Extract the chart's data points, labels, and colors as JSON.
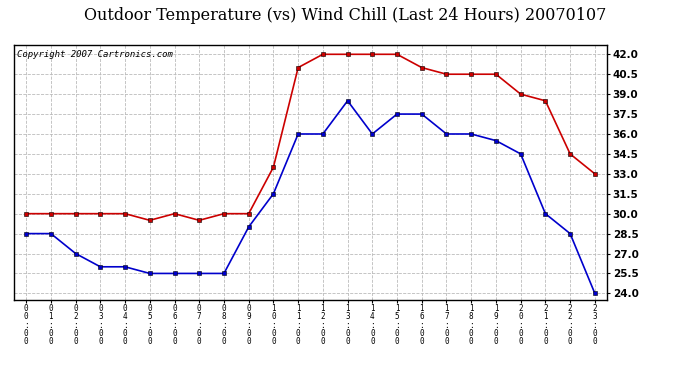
{
  "title": "Outdoor Temperature (vs) Wind Chill (Last 24 Hours) 20070107",
  "copyright": "Copyright 2007 Cartronics.com",
  "hours": [
    "00:00",
    "01:00",
    "02:00",
    "03:00",
    "04:00",
    "05:00",
    "06:00",
    "07:00",
    "08:00",
    "09:00",
    "10:00",
    "11:00",
    "12:00",
    "13:00",
    "14:00",
    "15:00",
    "16:00",
    "17:00",
    "18:00",
    "19:00",
    "20:00",
    "21:00",
    "22:00",
    "23:00"
  ],
  "outdoor_temp": [
    28.5,
    28.5,
    27.0,
    26.0,
    26.0,
    25.5,
    25.5,
    25.5,
    25.5,
    29.0,
    31.5,
    36.0,
    36.0,
    38.5,
    36.0,
    37.5,
    37.5,
    36.0,
    36.0,
    35.5,
    34.5,
    30.0,
    28.5,
    24.0
  ],
  "wind_chill": [
    30.0,
    30.0,
    30.0,
    30.0,
    30.0,
    29.5,
    30.0,
    29.5,
    30.0,
    30.0,
    33.5,
    41.0,
    42.0,
    42.0,
    42.0,
    42.0,
    41.0,
    40.5,
    40.5,
    40.5,
    39.0,
    38.5,
    34.5,
    33.0
  ],
  "temp_color": "#0000cc",
  "windchill_color": "#cc0000",
  "ylim": [
    23.5,
    42.7
  ],
  "yticks": [
    24.0,
    25.5,
    27.0,
    28.5,
    30.0,
    31.5,
    33.0,
    34.5,
    36.0,
    37.5,
    39.0,
    40.5,
    42.0
  ],
  "bg_color": "#ffffff",
  "plot_bg_color": "#ffffff",
  "grid_color": "#bbbbbb",
  "title_fontsize": 11.5,
  "copyright_fontsize": 6.5,
  "marker": "s",
  "marker_size": 3.5
}
